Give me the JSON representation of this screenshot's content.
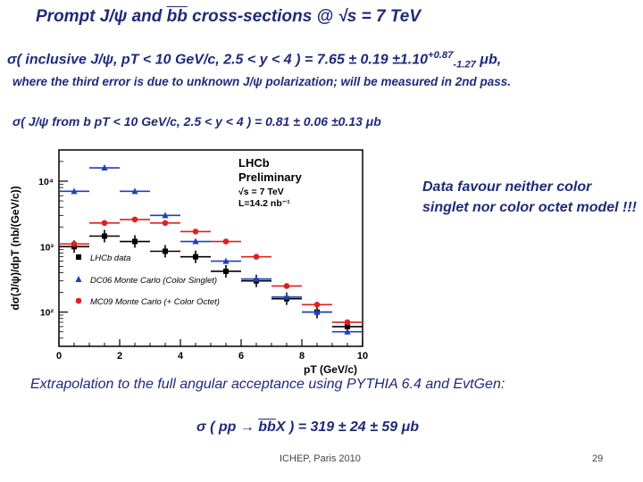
{
  "title": {
    "part1": "Prompt  J/ψ and ",
    "bb": "bb",
    "part2": " cross-sections @ √s = 7 TeV"
  },
  "inclusive": {
    "text": "σ( inclusive J/ψ, pT < 10 GeV/c, 2.5 < y < 4 ) = 7.65 ± 0.19 ±1.10",
    "sup": "+0.87",
    "sub": "-1.27",
    "unit": " μb,"
  },
  "polarization_note": "where the third error is due to unknown J/ψ polarization; will be measured in 2nd pass.",
  "from_b": "σ( J/ψ from b pT < 10 GeV/c, 2.5 < y < 4 ) = 0.81 ± 0.06 ±0.13 μb",
  "conclusion": "Data favour neither color singlet nor color octet model !!!",
  "extrapolation": "Extrapolation to the full angular acceptance using PYTHIA 6.4 and EvtGen:",
  "result": {
    "part1": "σ ( pp ",
    "arrow": "→",
    "part2": " ",
    "bb": "bb",
    "part3": "X ) = 319 ± 24 ± 59 μb"
  },
  "footer": "ICHEP, Paris 2010",
  "page_number": "29",
  "chart_data": {
    "type": "scatter",
    "xlabel": "pT (GeV/c)",
    "ylabel": "dσ(J/ψ)/dpT (nb/(GeV/c))",
    "xlim": [
      0,
      10
    ],
    "ylim": [
      30,
      30000
    ],
    "yscale": "log",
    "x_ticks": [
      "0",
      "2",
      "4",
      "6",
      "8",
      "10"
    ],
    "y_ticks": [
      "10²",
      "10³",
      "10⁴"
    ],
    "annotation": [
      "LHCb",
      "Preliminary",
      "√s = 7 TeV",
      "L=14.2 nb⁻¹"
    ],
    "legend_position": "bottom-left",
    "series": [
      {
        "name": "LHCb data",
        "marker": "square",
        "color": "#000000",
        "x": [
          0.5,
          1.5,
          2.5,
          3.5,
          4.5,
          5.5,
          6.5,
          7.5,
          8.5,
          9.5
        ],
        "y": [
          1000,
          1450,
          1200,
          850,
          700,
          420,
          300,
          160,
          100,
          60
        ],
        "xerr": 0.5
      },
      {
        "name": "DC06 Monte Carlo (Color Singlet)",
        "marker": "triangle",
        "color": "#1f3fbf",
        "x": [
          0.5,
          1.5,
          2.5,
          3.5,
          4.5,
          5.5,
          6.5,
          7.5,
          8.5,
          9.5
        ],
        "y": [
          7000,
          16000,
          7000,
          3000,
          1200,
          600,
          320,
          170,
          100,
          50
        ],
        "xerr": 0.5
      },
      {
        "name": "MC09 Monte Carlo (+ Color Octet)",
        "marker": "circle",
        "color": "#e02020",
        "x": [
          0.5,
          1.5,
          2.5,
          3.5,
          4.5,
          5.5,
          6.5,
          7.5,
          8.5,
          9.5
        ],
        "y": [
          1100,
          2300,
          2600,
          2300,
          1700,
          1200,
          700,
          250,
          130,
          70
        ],
        "xerr": 0.5
      }
    ]
  }
}
